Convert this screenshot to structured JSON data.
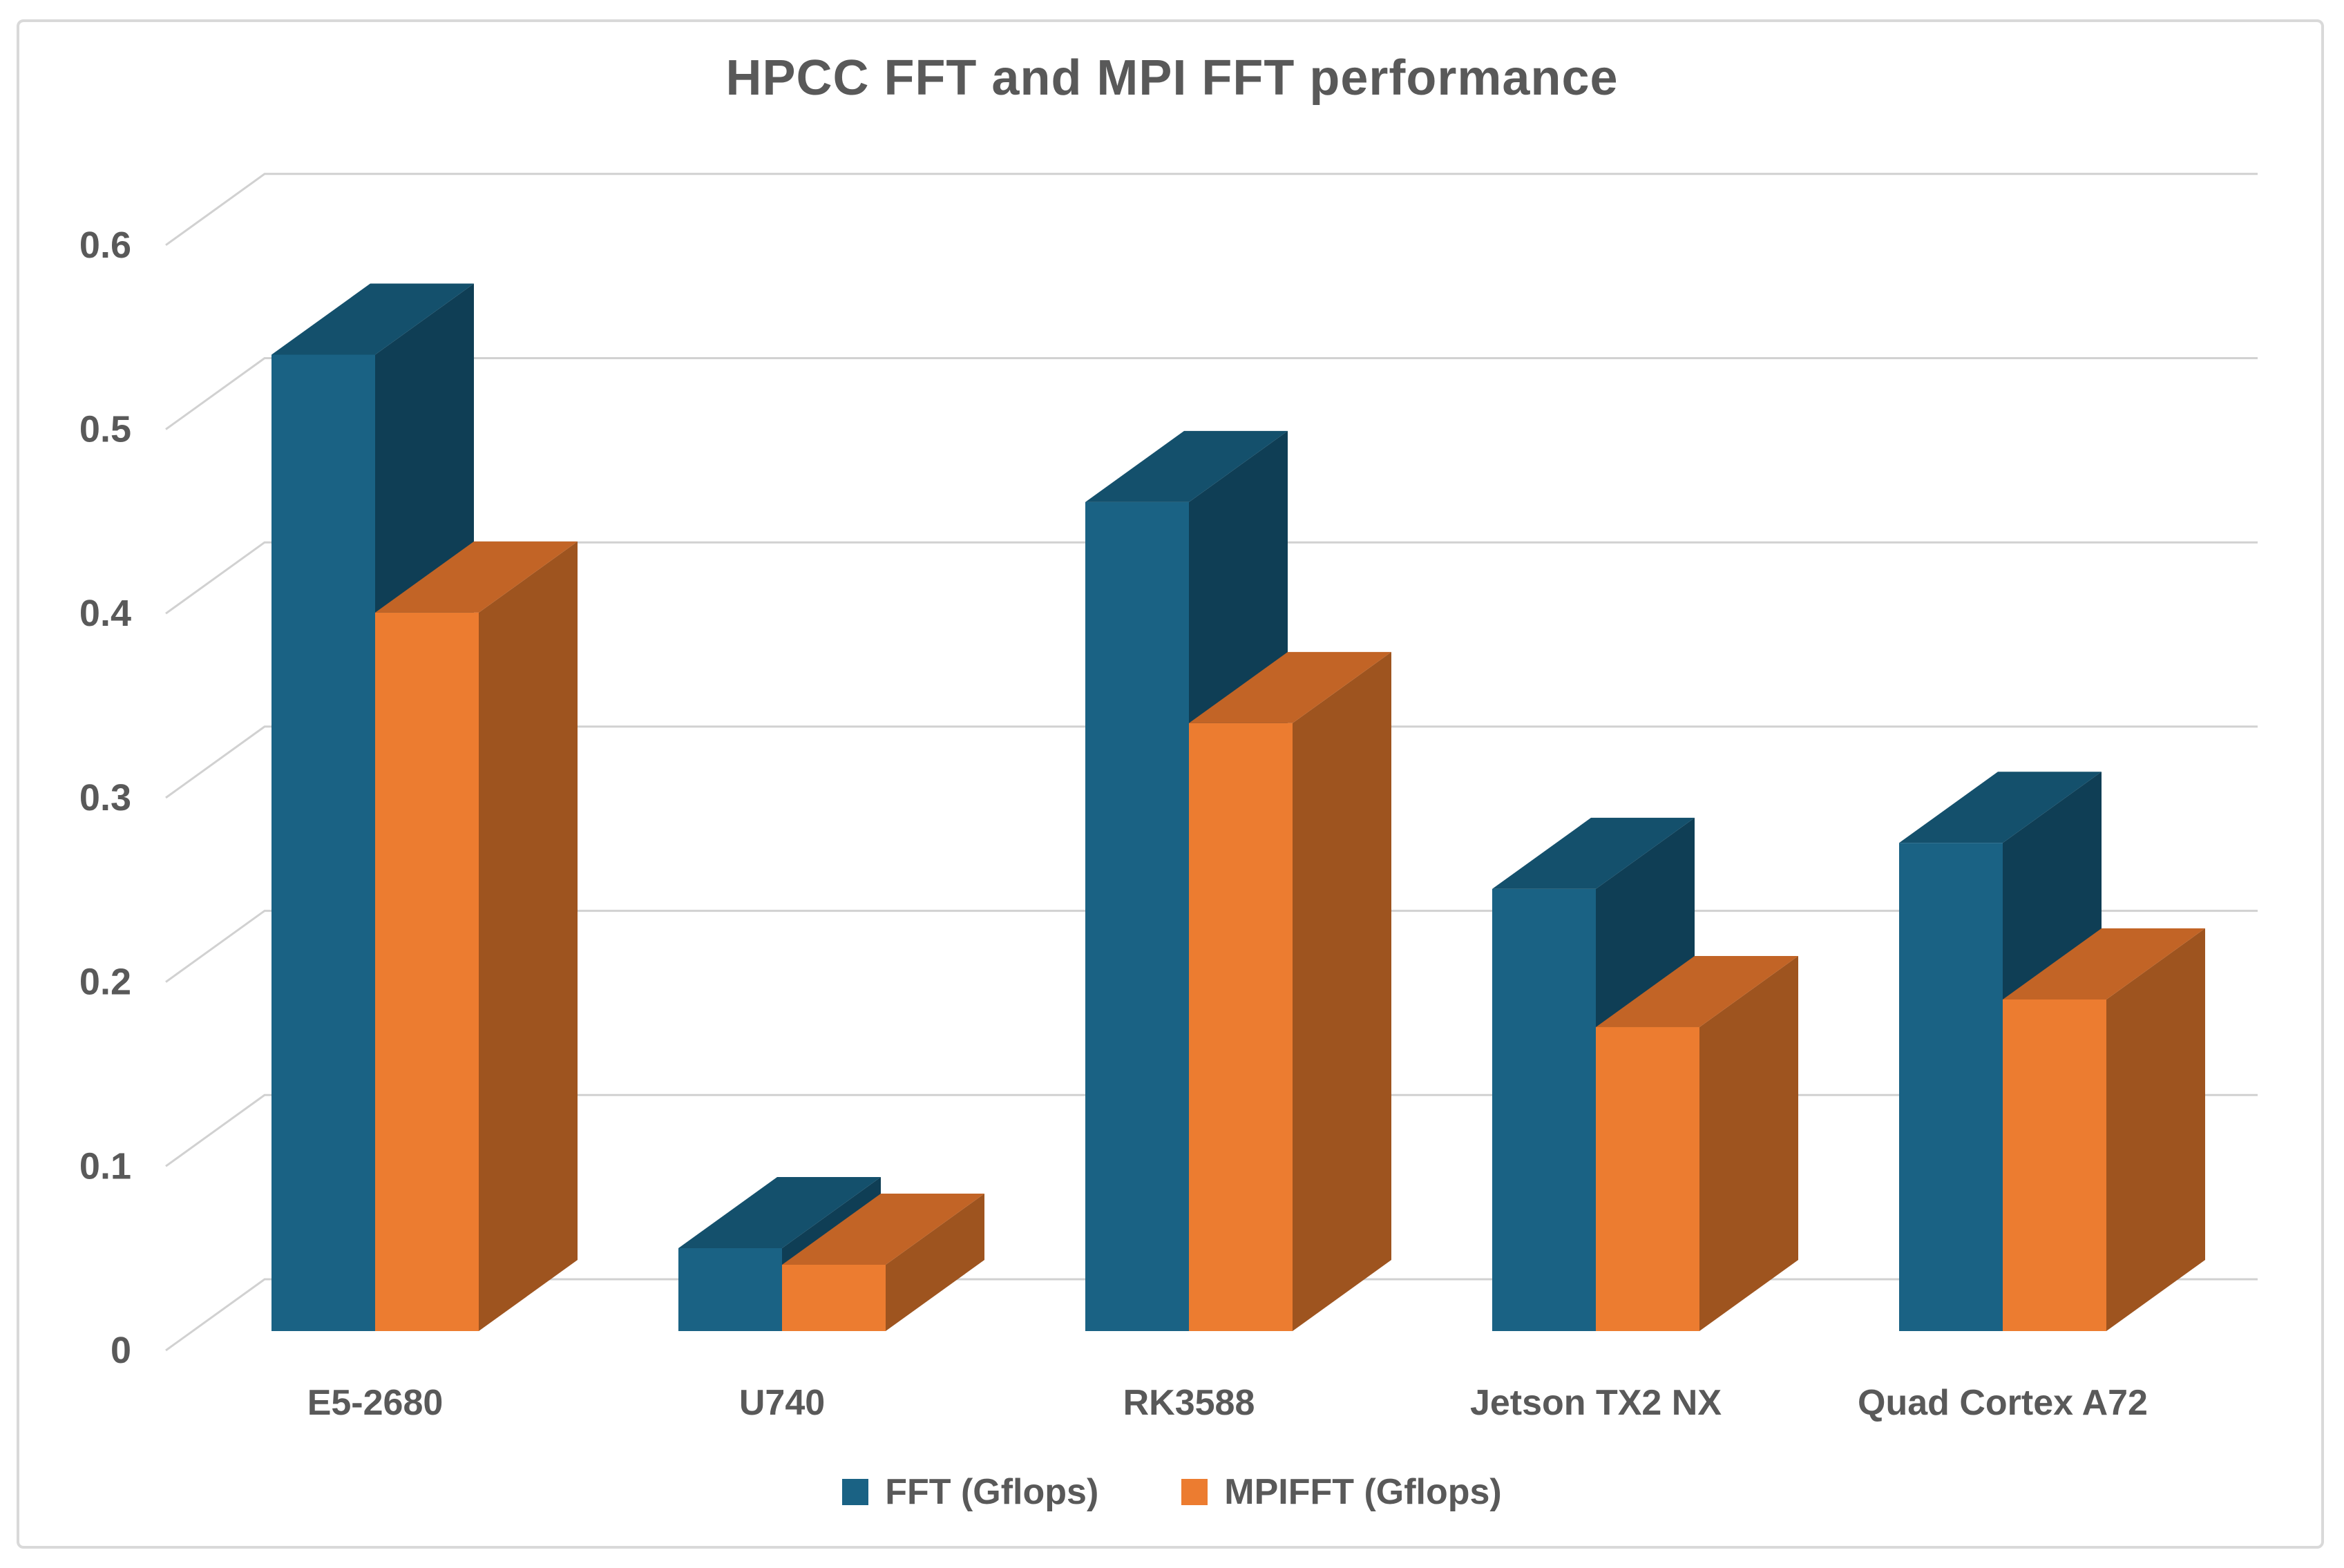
{
  "title": "HPCC FFT and MPI FFT performance",
  "chart_data": {
    "type": "bar",
    "subtype": "3d-clustered-column",
    "title": "HPCC FFT and MPI FFT performance",
    "categories": [
      "E5-2680",
      "U740",
      "RK3588",
      "Jetson TX2 NX",
      "Quad Cortex A72"
    ],
    "series": [
      {
        "name": "FFT (Gflops)",
        "values": [
          0.53,
          0.045,
          0.45,
          0.24,
          0.265
        ]
      },
      {
        "name": "MPIFFT (Gflops)",
        "values": [
          0.39,
          0.036,
          0.33,
          0.165,
          0.18
        ]
      }
    ],
    "xlabel": "",
    "ylabel": "",
    "ylim": [
      0,
      0.6
    ],
    "yticks": [
      "0",
      "0.1",
      "0.2",
      "0.3",
      "0.4",
      "0.5",
      "0.6"
    ],
    "grid": true,
    "legend_position": "bottom"
  },
  "legend": {
    "items": [
      {
        "label": "FFT (Gflops)"
      },
      {
        "label": "MPIFFT (Gflops)"
      }
    ]
  },
  "colors": {
    "title_text": "#595959",
    "axis_text": "#595959",
    "gridline": "#d1d1d1",
    "frame_border": "#d9d9d9",
    "background": "#ffffff",
    "series": [
      {
        "front": "#1a6284",
        "top": "#14506c",
        "side": "#0f3e55"
      },
      {
        "front": "#ec7c30",
        "top": "#c26426",
        "side": "#9e541f"
      }
    ]
  }
}
